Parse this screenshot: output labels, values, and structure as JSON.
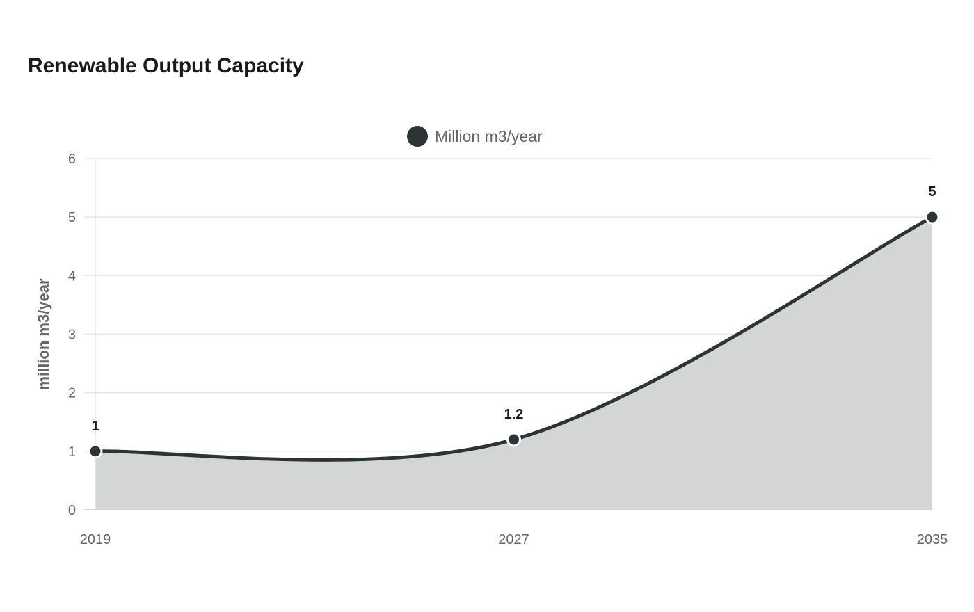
{
  "colors": {
    "series": "#2e3436",
    "area_fill": "#d4d6d6",
    "grid": "#e6e6e6",
    "axis_text": "#666666",
    "title_text": "#1a1a1a"
  },
  "chart_data": {
    "type": "area",
    "title": "Renewable Output Capacity",
    "xlabel": "",
    "ylabel": "million m3/year",
    "x": [
      "2019",
      "2027",
      "2035"
    ],
    "series": [
      {
        "name": "Million m3/year",
        "values": [
          1,
          1.2,
          5
        ],
        "color": "#2e3436"
      }
    ],
    "ylim": [
      0,
      6
    ],
    "yticks": [
      "0",
      "1",
      "2",
      "3",
      "4",
      "5",
      "6"
    ],
    "grid": true,
    "legend": "top-center",
    "data_labels": [
      "1",
      "1.2",
      "5"
    ]
  }
}
